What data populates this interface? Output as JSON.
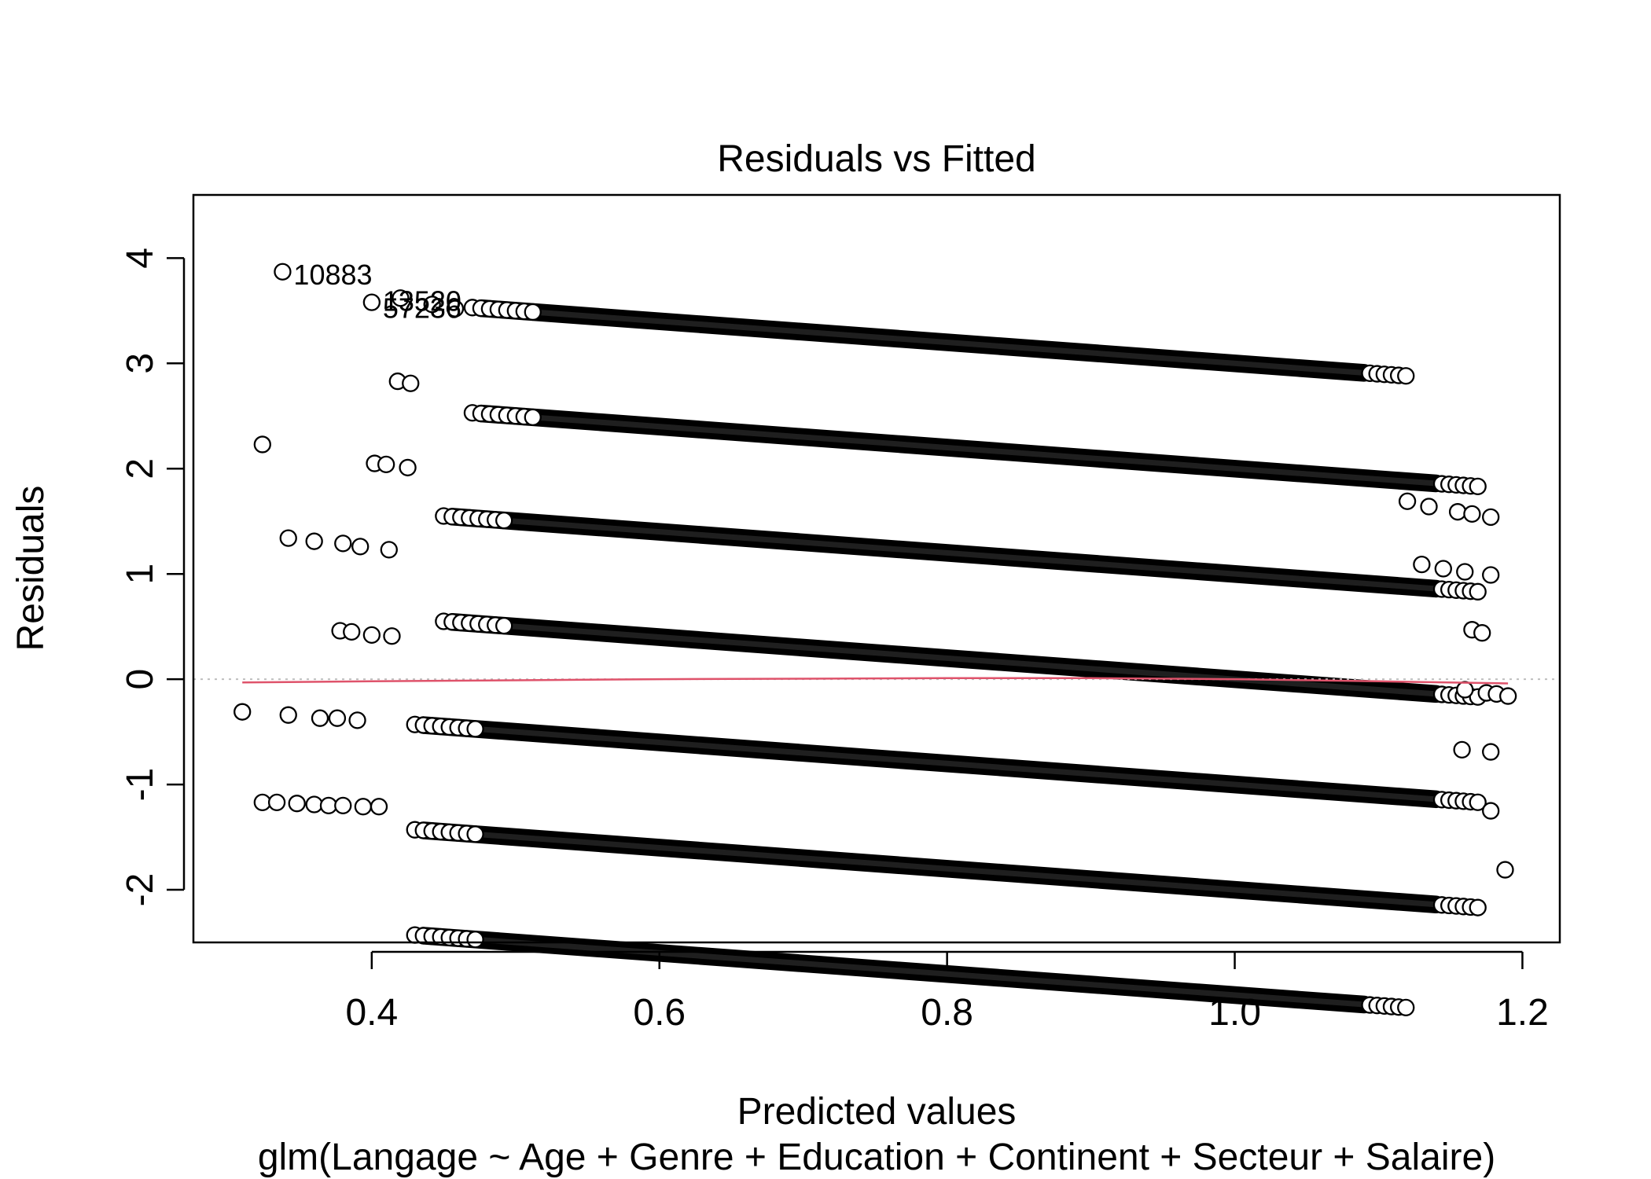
{
  "chart_data": {
    "type": "scatter",
    "title": "Residuals vs Fitted",
    "xlabel": "Predicted values",
    "ylabel": "Residuals",
    "subtitle": "glm(Langage ~ Age + Genre + Education + Continent + Secteur + Salaire)",
    "xlim": [
      0.276,
      1.226
    ],
    "ylim": [
      -2.5,
      4.6
    ],
    "xticks": [
      0.4,
      0.6,
      0.8,
      1.0,
      1.2
    ],
    "xtick_labels": [
      "0.4",
      "0.6",
      "0.8",
      "1.0",
      "1.2"
    ],
    "yticks": [
      -2,
      -1,
      0,
      1,
      2,
      3,
      4
    ],
    "ytick_labels": [
      "-2",
      "-1",
      "0",
      "1",
      "2",
      "3",
      "4"
    ],
    "grid": false,
    "bands": [
      {
        "level": 4,
        "x_start": 0.476,
        "x_end": 1.09
      },
      {
        "level": 3,
        "x_start": 0.476,
        "x_end": 1.14
      },
      {
        "level": 2,
        "x_start": 0.456,
        "x_end": 1.14
      },
      {
        "level": 1,
        "x_start": 0.456,
        "x_end": 1.14
      },
      {
        "level": 0,
        "x_start": 0.436,
        "x_end": 1.14
      },
      {
        "level": -1,
        "x_start": 0.436,
        "x_end": 1.14
      },
      {
        "level": -2,
        "x_start": 0.436,
        "x_end": 1.09
      }
    ],
    "extra_points": [
      {
        "x": 0.338,
        "y": 3.87
      },
      {
        "x": 0.42,
        "y": 3.62
      },
      {
        "x": 0.4,
        "y": 3.58
      },
      {
        "x": 0.442,
        "y": 3.56
      },
      {
        "x": 0.458,
        "y": 3.52
      },
      {
        "x": 1.12,
        "y": 1.69
      },
      {
        "x": 1.135,
        "y": 1.64
      },
      {
        "x": 1.155,
        "y": 1.59
      },
      {
        "x": 1.165,
        "y": 1.57
      },
      {
        "x": 1.178,
        "y": 1.54
      },
      {
        "x": 0.418,
        "y": 2.83
      },
      {
        "x": 0.427,
        "y": 2.81
      },
      {
        "x": 1.13,
        "y": 1.09
      },
      {
        "x": 1.145,
        "y": 1.05
      },
      {
        "x": 1.16,
        "y": 1.02
      },
      {
        "x": 1.178,
        "y": 0.99
      },
      {
        "x": 0.324,
        "y": 2.23
      },
      {
        "x": 0.402,
        "y": 2.05
      },
      {
        "x": 0.41,
        "y": 2.04
      },
      {
        "x": 0.425,
        "y": 2.01
      },
      {
        "x": 1.165,
        "y": 0.47
      },
      {
        "x": 1.172,
        "y": 0.44
      },
      {
        "x": 0.342,
        "y": 1.34
      },
      {
        "x": 0.36,
        "y": 1.31
      },
      {
        "x": 0.38,
        "y": 1.29
      },
      {
        "x": 0.392,
        "y": 1.26
      },
      {
        "x": 0.412,
        "y": 1.23
      },
      {
        "x": 1.16,
        "y": -0.1
      },
      {
        "x": 1.175,
        "y": -0.13
      },
      {
        "x": 1.182,
        "y": -0.14
      },
      {
        "x": 1.19,
        "y": -0.16
      },
      {
        "x": 0.378,
        "y": 0.46
      },
      {
        "x": 0.386,
        "y": 0.45
      },
      {
        "x": 0.4,
        "y": 0.42
      },
      {
        "x": 0.414,
        "y": 0.41
      },
      {
        "x": 1.158,
        "y": -0.67
      },
      {
        "x": 1.178,
        "y": -0.69
      },
      {
        "x": 0.31,
        "y": -0.31
      },
      {
        "x": 0.342,
        "y": -0.34
      },
      {
        "x": 0.364,
        "y": -0.37
      },
      {
        "x": 0.376,
        "y": -0.37
      },
      {
        "x": 0.39,
        "y": -0.39
      },
      {
        "x": 1.178,
        "y": -1.25
      },
      {
        "x": 0.324,
        "y": -1.17
      },
      {
        "x": 0.334,
        "y": -1.17
      },
      {
        "x": 0.348,
        "y": -1.18
      },
      {
        "x": 0.36,
        "y": -1.19
      },
      {
        "x": 0.37,
        "y": -1.2
      },
      {
        "x": 0.38,
        "y": -1.2
      },
      {
        "x": 0.394,
        "y": -1.21
      },
      {
        "x": 0.405,
        "y": -1.21
      },
      {
        "x": 1.188,
        "y": -1.81
      }
    ],
    "point_labels": [
      {
        "text": "10883",
        "x": 0.338,
        "y": 3.87
      },
      {
        "text": "13520",
        "x": 0.4,
        "y": 3.62
      },
      {
        "text": "57236",
        "x": 0.4,
        "y": 3.55
      }
    ],
    "reference_line": {
      "y": 0,
      "style": "dotted",
      "color": "#bebebe"
    },
    "smooth_line": {
      "color": "#df536b",
      "x": [
        0.31,
        0.4,
        0.5,
        0.6,
        0.7,
        0.8,
        0.9,
        1.0,
        1.1,
        1.19
      ],
      "y": [
        -0.03,
        -0.02,
        -0.01,
        0.0,
        0.005,
        0.01,
        0.01,
        0.0,
        -0.02,
        -0.04
      ]
    }
  }
}
